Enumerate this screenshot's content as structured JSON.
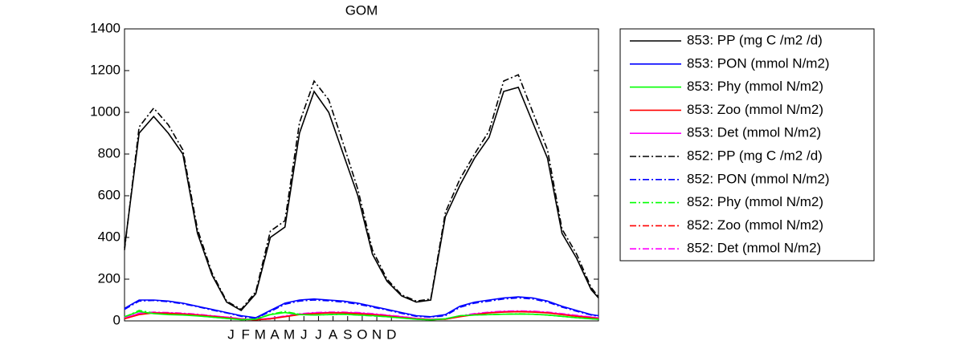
{
  "chart_data": {
    "type": "line",
    "title": "GOM",
    "x": [
      0,
      1,
      2,
      3,
      4,
      5,
      6,
      7,
      8,
      9,
      10,
      11,
      12,
      13,
      14,
      15,
      16,
      17,
      18,
      19,
      20,
      21,
      22,
      23,
      24,
      25,
      26,
      27,
      28,
      29,
      30,
      31,
      32,
      32.5
    ],
    "xlim": [
      0,
      32.5
    ],
    "xticks": [
      {
        "value": 7.3,
        "label": "J"
      },
      {
        "value": 8.3,
        "label": "F"
      },
      {
        "value": 9.3,
        "label": "M"
      },
      {
        "value": 10.3,
        "label": "A"
      },
      {
        "value": 11.3,
        "label": "M"
      },
      {
        "value": 12.3,
        "label": "J"
      },
      {
        "value": 13.3,
        "label": "J"
      },
      {
        "value": 14.3,
        "label": "A"
      },
      {
        "value": 15.3,
        "label": "S"
      },
      {
        "value": 16.3,
        "label": "O"
      },
      {
        "value": 17.3,
        "label": "N"
      },
      {
        "value": 18.3,
        "label": "D"
      }
    ],
    "ylim": [
      0,
      1400
    ],
    "yticks": [
      0,
      200,
      400,
      600,
      800,
      1000,
      1200,
      1400
    ],
    "grid": false,
    "legend": "outside-right",
    "series": [
      {
        "name": "853: PP (mg C /m2 /d)",
        "color": "#000000",
        "line_style": "solid",
        "values": [
          350,
          900,
          980,
          900,
          800,
          420,
          220,
          90,
          50,
          130,
          400,
          450,
          900,
          1100,
          1000,
          800,
          600,
          320,
          190,
          120,
          90,
          100,
          500,
          650,
          780,
          880,
          1100,
          1120,
          950,
          780,
          420,
          300,
          150,
          110
        ]
      },
      {
        "name": "853: PON (mmol N/m2)",
        "color": "#0000ff",
        "line_style": "solid",
        "values": [
          60,
          100,
          100,
          95,
          85,
          70,
          55,
          40,
          25,
          15,
          50,
          85,
          100,
          105,
          100,
          95,
          85,
          70,
          55,
          40,
          25,
          20,
          30,
          70,
          90,
          100,
          110,
          115,
          110,
          95,
          70,
          50,
          30,
          25
        ]
      },
      {
        "name": "853: Phy (mmol N/m2)",
        "color": "#00ff00",
        "line_style": "solid",
        "values": [
          20,
          45,
          35,
          30,
          28,
          24,
          18,
          12,
          6,
          8,
          30,
          40,
          30,
          28,
          30,
          32,
          28,
          25,
          20,
          14,
          8,
          5,
          10,
          25,
          28,
          30,
          32,
          33,
          32,
          28,
          22,
          15,
          10,
          8
        ]
      },
      {
        "name": "853: Zoo (mmol N/m2)",
        "color": "#ff0000",
        "line_style": "solid",
        "values": [
          10,
          30,
          38,
          36,
          33,
          28,
          22,
          15,
          8,
          5,
          10,
          20,
          30,
          35,
          38,
          38,
          35,
          30,
          24,
          16,
          10,
          6,
          8,
          20,
          30,
          38,
          42,
          44,
          42,
          38,
          30,
          22,
          15,
          12
        ]
      },
      {
        "name": "853: Det (mmol N/m2)",
        "color": "#ff00ff",
        "line_style": "solid",
        "values": [
          15,
          35,
          40,
          38,
          35,
          30,
          24,
          18,
          10,
          6,
          12,
          22,
          32,
          38,
          40,
          40,
          38,
          33,
          27,
          20,
          12,
          8,
          10,
          22,
          33,
          40,
          45,
          46,
          45,
          40,
          33,
          25,
          18,
          14
        ]
      },
      {
        "name": "852: PP (mg C /m2 /d)",
        "color": "#000000",
        "line_style": "dashdot",
        "values": [
          340,
          930,
          1020,
          940,
          820,
          440,
          230,
          95,
          55,
          140,
          430,
          480,
          950,
          1150,
          1060,
          850,
          630,
          340,
          200,
          125,
          95,
          105,
          520,
          680,
          800,
          910,
          1150,
          1180,
          1000,
          820,
          440,
          320,
          160,
          115
        ]
      },
      {
        "name": "852: PON (mmol N/m2)",
        "color": "#0000ff",
        "line_style": "dashdot",
        "values": [
          55,
          95,
          98,
          92,
          82,
          68,
          52,
          38,
          22,
          12,
          45,
          80,
          95,
          100,
          96,
          90,
          80,
          66,
          52,
          36,
          22,
          18,
          25,
          65,
          85,
          95,
          105,
          110,
          105,
          90,
          66,
          46,
          28,
          22
        ]
      },
      {
        "name": "852: Phy (mmol N/m2)",
        "color": "#00ff00",
        "line_style": "dashdot",
        "values": [
          18,
          50,
          38,
          32,
          30,
          25,
          18,
          12,
          6,
          8,
          32,
          45,
          32,
          28,
          30,
          32,
          28,
          24,
          20,
          14,
          8,
          5,
          10,
          24,
          28,
          30,
          32,
          34,
          32,
          28,
          22,
          15,
          10,
          8
        ]
      },
      {
        "name": "852: Zoo (mmol N/m2)",
        "color": "#ff0000",
        "line_style": "dashdot",
        "values": [
          10,
          32,
          40,
          38,
          35,
          30,
          23,
          15,
          8,
          5,
          10,
          22,
          32,
          37,
          40,
          40,
          37,
          32,
          26,
          17,
          10,
          6,
          8,
          22,
          32,
          40,
          44,
          46,
          44,
          40,
          32,
          24,
          16,
          12
        ]
      },
      {
        "name": "852: Det (mmol N/m2)",
        "color": "#ff00ff",
        "line_style": "dashdot",
        "values": [
          15,
          37,
          42,
          40,
          37,
          32,
          25,
          18,
          10,
          6,
          12,
          24,
          34,
          40,
          42,
          42,
          40,
          35,
          28,
          21,
          12,
          8,
          10,
          24,
          35,
          42,
          47,
          48,
          47,
          42,
          35,
          27,
          19,
          15
        ]
      }
    ]
  }
}
